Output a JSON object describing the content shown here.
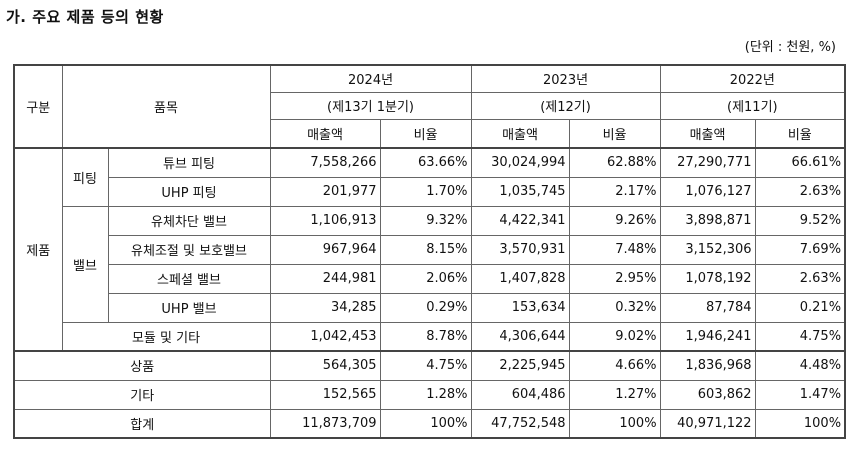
{
  "title": "가. 주요 제품 등의 현황",
  "unit": "(단위 : 천원, %)",
  "header": {
    "category": "구분",
    "item": "품목",
    "periods": [
      {
        "year": "2024년",
        "term": "(제13기 1분기)"
      },
      {
        "year": "2023년",
        "term": "(제12기)"
      },
      {
        "year": "2022년",
        "term": "(제11기)"
      }
    ],
    "sales": "매출액",
    "ratio": "비율"
  },
  "groups": {
    "product": "제품",
    "fitting": "피팅",
    "valve": "밸브"
  },
  "rows": [
    {
      "name": "튜브 피팅",
      "values": [
        "7,558,266",
        "63.66%",
        "30,024,994",
        "62.88%",
        "27,290,771",
        "66.61%"
      ]
    },
    {
      "name": "UHP 피팅",
      "values": [
        "201,977",
        "1.70%",
        "1,035,745",
        "2.17%",
        "1,076,127",
        "2.63%"
      ]
    },
    {
      "name": "유체차단 밸브",
      "values": [
        "1,106,913",
        "9.32%",
        "4,422,341",
        "9.26%",
        "3,898,871",
        "9.52%"
      ]
    },
    {
      "name": "유체조절 및 보호밸브",
      "values": [
        "967,964",
        "8.15%",
        "3,570,931",
        "7.48%",
        "3,152,306",
        "7.69%"
      ]
    },
    {
      "name": "스페셜 밸브",
      "values": [
        "244,981",
        "2.06%",
        "1,407,828",
        "2.95%",
        "1,078,192",
        "2.63%"
      ]
    },
    {
      "name": "UHP 밸브",
      "values": [
        "34,285",
        "0.29%",
        "153,634",
        "0.32%",
        "87,784",
        "0.21%"
      ]
    },
    {
      "name": "모듈 및 기타",
      "values": [
        "1,042,453",
        "8.78%",
        "4,306,644",
        "9.02%",
        "1,946,241",
        "4.75%"
      ]
    },
    {
      "name": "상품",
      "values": [
        "564,305",
        "4.75%",
        "2,225,945",
        "4.66%",
        "1,836,968",
        "4.48%"
      ]
    },
    {
      "name": "기타",
      "values": [
        "152,565",
        "1.28%",
        "604,486",
        "1.27%",
        "603,862",
        "1.47%"
      ]
    },
    {
      "name": "합계",
      "values": [
        "11,873,709",
        "100%",
        "47,752,548",
        "100%",
        "40,971,122",
        "100%"
      ]
    }
  ]
}
